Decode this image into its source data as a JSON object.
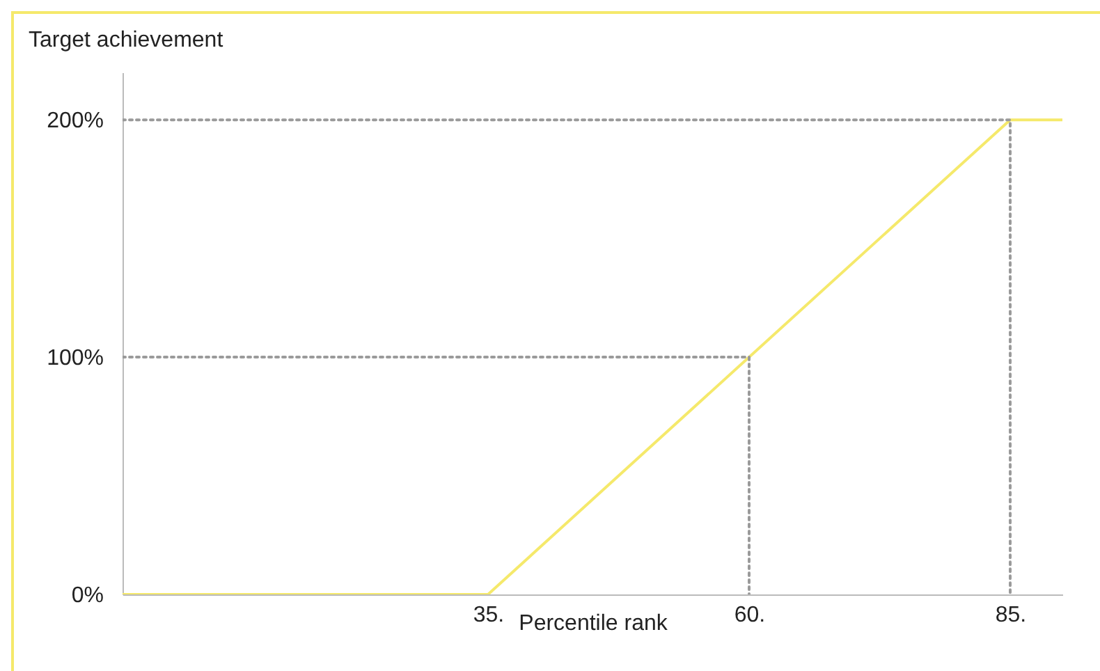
{
  "chart_data": {
    "type": "line",
    "xlabel": "Percentile rank",
    "ylabel": "Target achievement",
    "xlim": [
      0,
      90
    ],
    "xticks": [
      {
        "value": 35,
        "label": "35."
      },
      {
        "value": 60,
        "label": "60."
      },
      {
        "value": 85,
        "label": "85."
      }
    ],
    "ylim": [
      0,
      220
    ],
    "yticks": [
      {
        "value": 0,
        "label": "0%"
      },
      {
        "value": 100,
        "label": "100%"
      },
      {
        "value": 200,
        "label": "200%"
      }
    ],
    "grid": false,
    "marker": "none",
    "series": [
      {
        "color": "#f5e96b",
        "line_style": "solid",
        "x": [
          0,
          35,
          60,
          85,
          90
        ],
        "values": [
          0,
          0,
          100,
          200,
          200
        ]
      },
      {
        "color": "#9a9a9a",
        "line_style": "dotted",
        "x": [
          0,
          60,
          60
        ],
        "values": [
          100,
          100,
          0
        ]
      },
      {
        "color": "#9a9a9a",
        "line_style": "dotted",
        "x": [
          0,
          85,
          85
        ],
        "values": [
          200,
          200,
          0
        ]
      }
    ]
  }
}
